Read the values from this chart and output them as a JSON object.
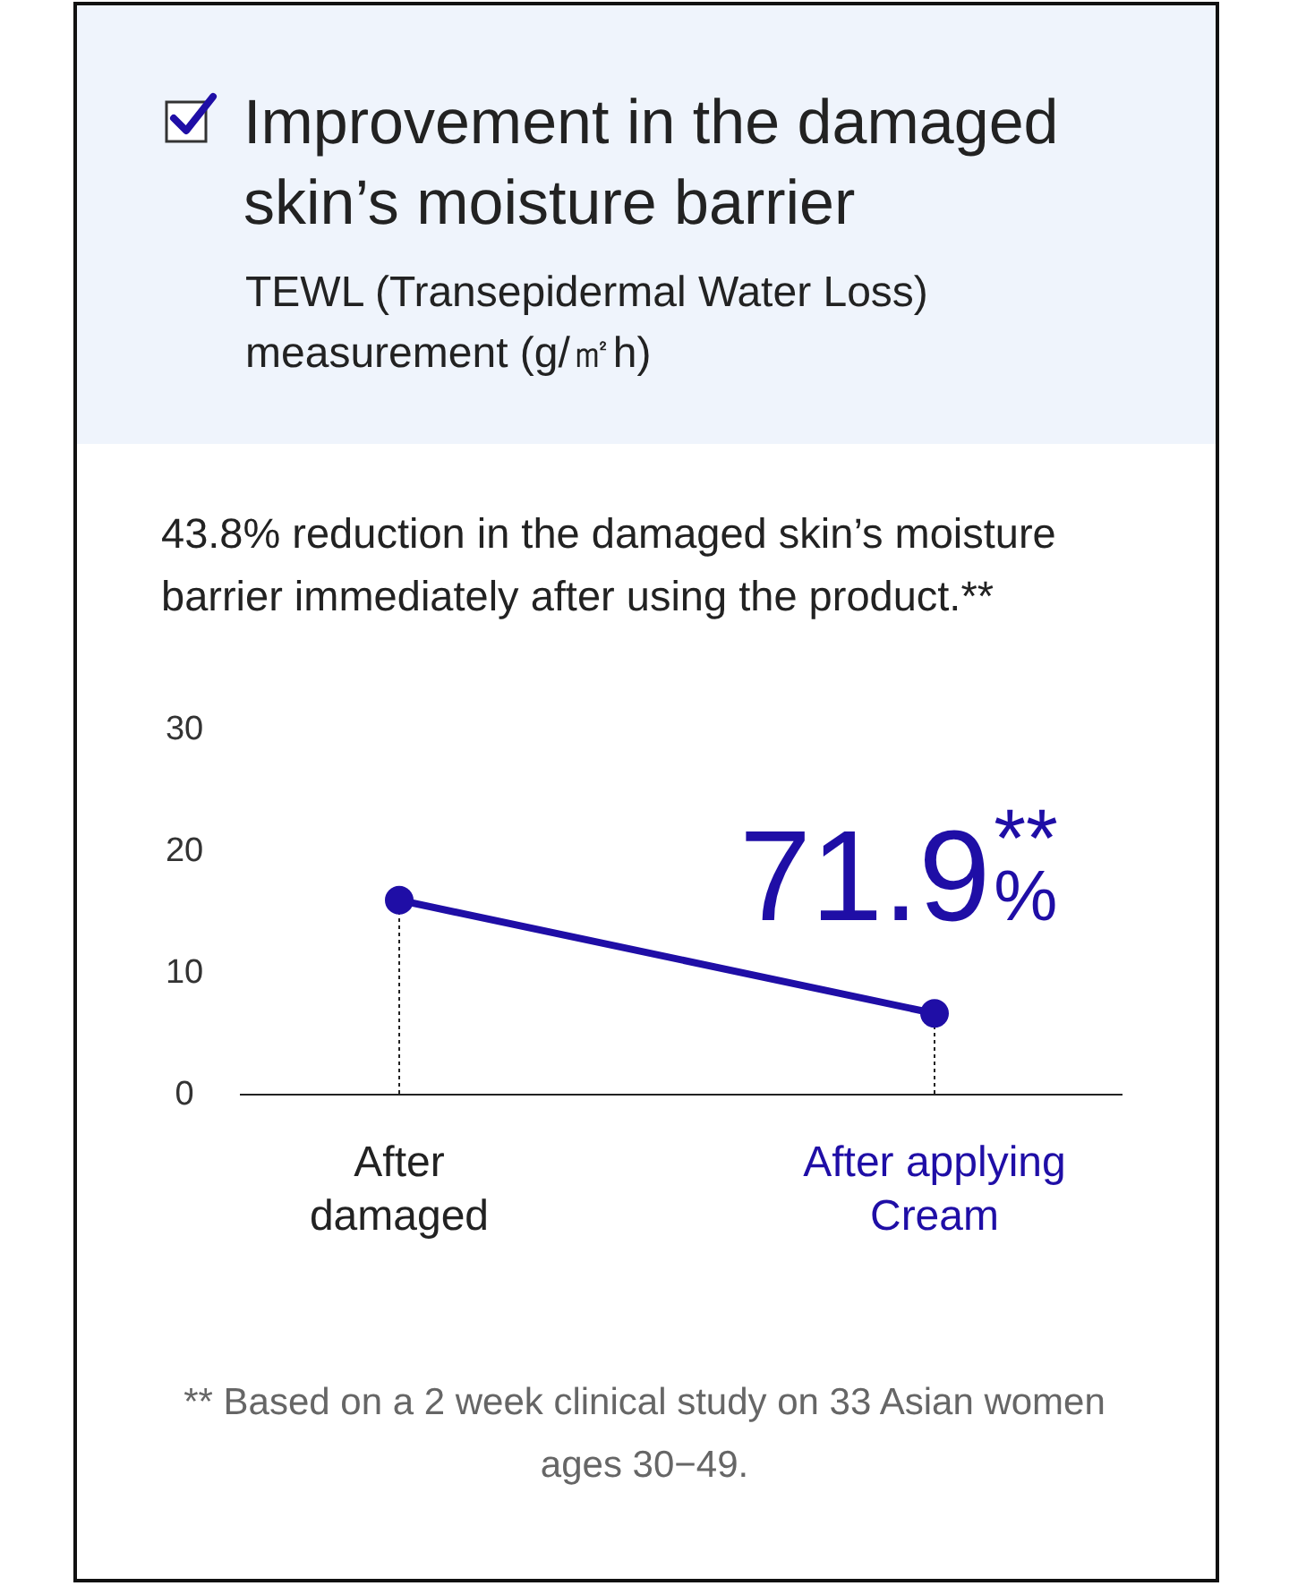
{
  "chart_data": {
    "type": "line",
    "title": "Improvement in the damaged skin’s moisture barrier",
    "subtitle": "TEWL (Transepidermal Water Loss) measurement (g/㎡h)",
    "categories": [
      "After damaged",
      "After applying Cream"
    ],
    "series": [
      {
        "color": "#1f0ea6",
        "values": [
          15.9,
          6.6
        ]
      },
      {
        "type": "lollipop",
        "color": "#1f0ea6",
        "values": [
          15.9,
          6.6
        ],
        "marker": "circle",
        "line_style": "dotted"
      }
    ],
    "ylim": [
      0,
      30
    ],
    "yticks": [
      0,
      10,
      20,
      30
    ],
    "line_style": "solid",
    "annotations": [
      "43.8% reduction in the damaged skin’s moisture barrier immediately after using the product.**",
      "71.9$^{**}$%",
      "** Based on a 2 week clinical study on 33 Asian women ages 30−49."
    ]
  }
}
